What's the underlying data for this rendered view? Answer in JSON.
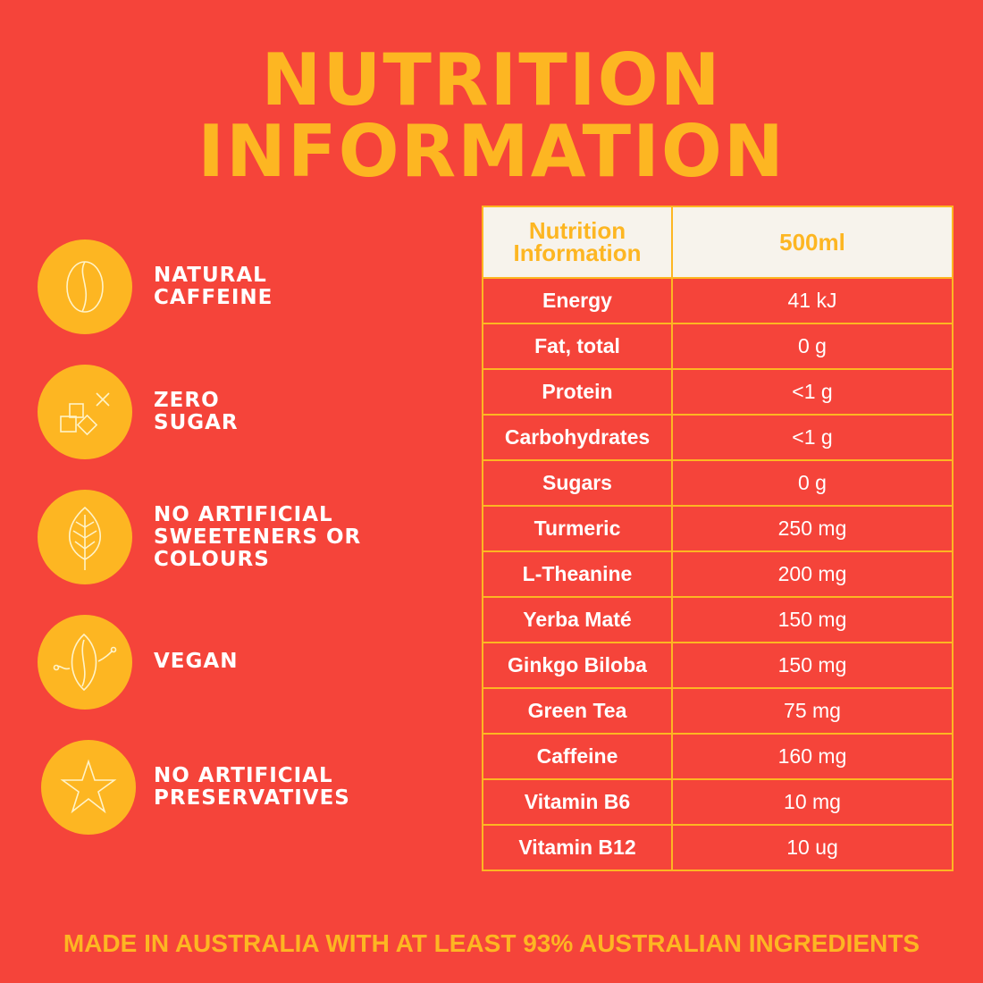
{
  "title": {
    "line1": "NUTRITION",
    "line2": "INFORMATION"
  },
  "features": [
    {
      "icon": "coffee-bean-icon",
      "lines": [
        "NATURAL",
        "CAFFEINE"
      ]
    },
    {
      "icon": "sugar-cubes-icon",
      "lines": [
        "ZERO",
        "SUGAR"
      ]
    },
    {
      "icon": "leaf-icon",
      "lines": [
        "NO ARTIFICIAL",
        "SWEETENERS OR",
        "COLOURS"
      ]
    },
    {
      "icon": "plant-leaf-icon",
      "lines": [
        "VEGAN"
      ]
    },
    {
      "icon": "star-icon",
      "lines": [
        "NO ARTIFICIAL",
        "PRESERVATIVES"
      ]
    }
  ],
  "table": {
    "header_line1": "Nutrition",
    "header_line2": "Information",
    "header_amount": "500ml",
    "rows": [
      {
        "name": "Energy",
        "value": "41 kJ"
      },
      {
        "name": "Fat, total",
        "value": "0 g"
      },
      {
        "name": "Protein",
        "value": "<1 g"
      },
      {
        "name": "Carbohydrates",
        "value": "<1 g"
      },
      {
        "name": "Sugars",
        "value": "0 g"
      },
      {
        "name": "Turmeric",
        "value": "250 mg"
      },
      {
        "name": "L-Theanine",
        "value": "200 mg"
      },
      {
        "name": "Yerba Maté",
        "value": "150 mg"
      },
      {
        "name": "Ginkgo Biloba",
        "value": "150 mg"
      },
      {
        "name": "Green Tea",
        "value": "75 mg"
      },
      {
        "name": "Caffeine",
        "value": "160 mg"
      },
      {
        "name": "Vitamin B6",
        "value": "10 mg"
      },
      {
        "name": "Vitamin B12",
        "value": "10 ug"
      }
    ]
  },
  "footer": "MADE IN AUSTRALIA WITH AT LEAST 93% AUSTRALIAN INGREDIENTS",
  "colors": {
    "background": "#f5443a",
    "accent": "#fdb622",
    "header_bg": "#f7f3ec",
    "text": "#ffffff"
  }
}
